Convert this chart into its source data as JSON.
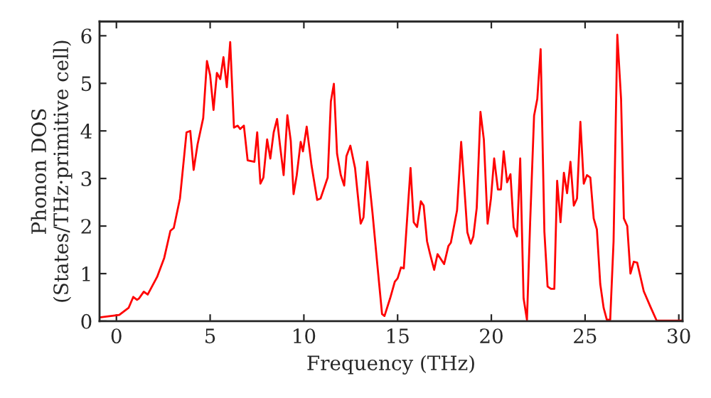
{
  "chart_data": {
    "type": "line",
    "xlabel": "Frequency (THz)",
    "ylabel": "Phonon DOS\n(States/THz·primitive cell)",
    "xlim": [
      -0.9,
      30.2
    ],
    "ylim": [
      0,
      6.3
    ],
    "xticks": [
      0,
      5,
      10,
      15,
      20,
      25,
      30
    ],
    "yticks": [
      0,
      1,
      2,
      3,
      4,
      5,
      6
    ],
    "grid": false,
    "legend": false,
    "series": [
      {
        "color": "#ff0000",
        "x": [
          -0.9,
          0.15,
          0.65,
          0.9,
          1.1,
          1.21,
          1.46,
          1.67,
          2.17,
          2.55,
          2.88,
          3.06,
          3.39,
          3.74,
          3.94,
          4.12,
          4.33,
          4.63,
          4.83,
          5.0,
          5.18,
          5.36,
          5.54,
          5.71,
          5.89,
          6.07,
          6.27,
          6.47,
          6.6,
          6.8,
          7.0,
          7.36,
          7.51,
          7.68,
          7.84,
          8.04,
          8.21,
          8.39,
          8.57,
          8.72,
          8.92,
          9.12,
          9.3,
          9.45,
          9.62,
          9.83,
          9.95,
          10.15,
          10.41,
          10.71,
          10.89,
          11.27,
          11.44,
          11.6,
          11.77,
          11.97,
          12.15,
          12.27,
          12.48,
          12.73,
          13.03,
          13.18,
          13.38,
          13.66,
          13.92,
          14.17,
          14.3,
          14.6,
          14.85,
          15.0,
          15.18,
          15.33,
          15.69,
          15.86,
          16.04,
          16.24,
          16.39,
          16.57,
          16.72,
          16.95,
          17.13,
          17.48,
          17.71,
          17.84,
          18.17,
          18.39,
          18.54,
          18.72,
          18.9,
          19.04,
          19.22,
          19.42,
          19.6,
          19.8,
          19.98,
          20.15,
          20.35,
          20.51,
          20.66,
          20.84,
          21.02,
          21.19,
          21.37,
          21.54,
          21.72,
          21.9,
          22.07,
          22.28,
          22.45,
          22.63,
          22.83,
          23.0,
          23.18,
          23.36,
          23.51,
          23.69,
          23.87,
          24.04,
          24.22,
          24.4,
          24.57,
          24.75,
          24.93,
          25.1,
          25.28,
          25.46,
          25.63,
          25.81,
          25.99,
          26.16,
          26.34,
          26.52,
          26.72,
          26.92,
          27.07,
          27.25,
          27.42,
          27.6,
          27.78,
          28.13,
          28.49,
          28.82,
          30.2
        ],
        "values": [
          0.08,
          0.13,
          0.28,
          0.51,
          0.45,
          0.48,
          0.62,
          0.56,
          0.93,
          1.33,
          1.9,
          1.96,
          2.58,
          3.97,
          4.0,
          3.18,
          3.72,
          4.27,
          5.47,
          5.17,
          4.44,
          5.22,
          5.09,
          5.55,
          4.92,
          5.87,
          4.07,
          4.11,
          4.04,
          4.11,
          3.38,
          3.35,
          3.97,
          2.89,
          3.02,
          3.82,
          3.42,
          3.97,
          4.25,
          3.72,
          3.07,
          4.33,
          3.79,
          2.67,
          3.07,
          3.77,
          3.57,
          4.09,
          3.27,
          2.55,
          2.58,
          3.02,
          4.62,
          4.99,
          3.52,
          3.07,
          2.85,
          3.47,
          3.69,
          3.22,
          2.05,
          2.18,
          3.35,
          2.28,
          1.18,
          0.15,
          0.11,
          0.48,
          0.83,
          0.9,
          1.13,
          1.11,
          3.22,
          2.08,
          1.98,
          2.52,
          2.43,
          1.68,
          1.43,
          1.08,
          1.41,
          1.2,
          1.58,
          1.65,
          2.33,
          3.77,
          2.92,
          1.87,
          1.63,
          1.78,
          2.38,
          4.4,
          3.82,
          2.05,
          2.58,
          3.42,
          2.77,
          2.77,
          3.57,
          2.92,
          3.09,
          1.98,
          1.78,
          3.42,
          0.48,
          0.03,
          2.08,
          4.32,
          4.67,
          5.72,
          1.88,
          0.73,
          0.68,
          0.68,
          2.95,
          2.08,
          3.12,
          2.69,
          3.35,
          2.43,
          2.58,
          4.19,
          2.89,
          3.07,
          3.02,
          2.16,
          1.93,
          0.78,
          0.28,
          0.03,
          0.03,
          1.68,
          6.02,
          4.67,
          2.16,
          2.0,
          1.0,
          1.25,
          1.23,
          0.63,
          0.3,
          0.01,
          0.01
        ]
      }
    ]
  }
}
